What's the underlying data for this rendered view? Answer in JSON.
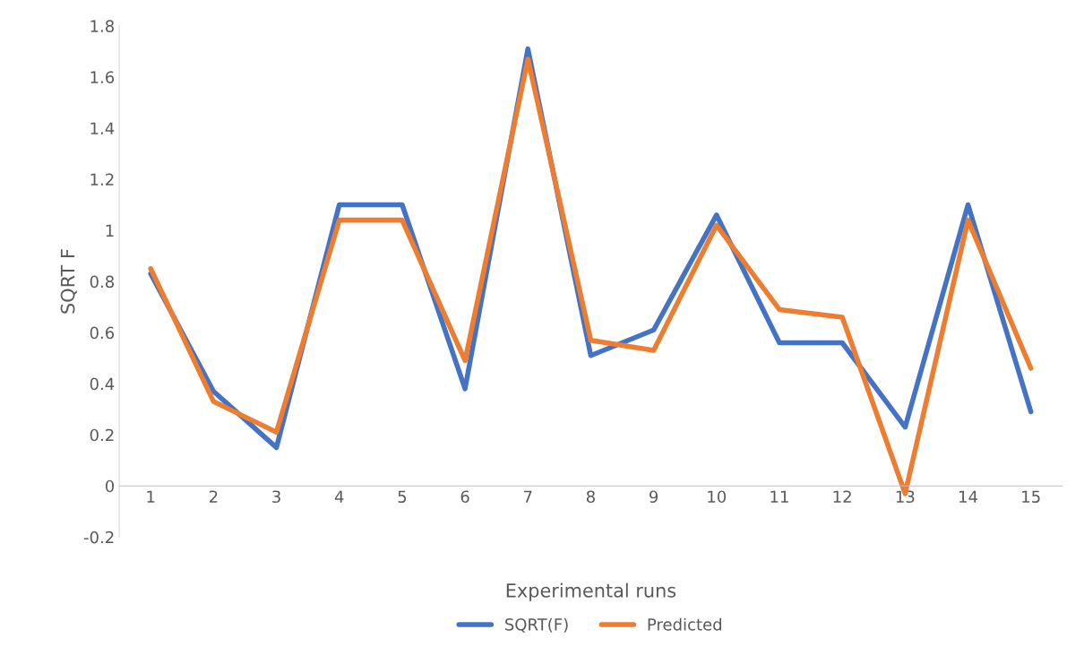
{
  "chart_data": {
    "type": "line",
    "xlabel": "Experimental runs",
    "ylabel": "SQRT F",
    "categories": [
      "1",
      "2",
      "3",
      "4",
      "5",
      "6",
      "7",
      "8",
      "9",
      "10",
      "11",
      "12",
      "13",
      "14",
      "15"
    ],
    "series": [
      {
        "name": "SQRT(F)",
        "color": "#4472c4",
        "values": [
          0.83,
          0.37,
          0.15,
          1.1,
          1.1,
          0.38,
          1.71,
          0.51,
          0.61,
          1.06,
          0.56,
          0.56,
          0.23,
          1.1,
          0.29
        ]
      },
      {
        "name": "Predicted",
        "color": "#ed7d31",
        "values": [
          0.85,
          0.33,
          0.21,
          1.04,
          1.04,
          0.49,
          1.67,
          0.57,
          0.53,
          1.02,
          0.69,
          0.66,
          -0.03,
          1.04,
          0.46
        ]
      }
    ],
    "ylim": [
      -0.2,
      1.8
    ],
    "yticks": [
      {
        "value": -0.2,
        "label": "-0.2"
      },
      0,
      0.2,
      0.4,
      0.6,
      0.8,
      1,
      1.2,
      1.4,
      1.6,
      1.8
    ],
    "grid": false,
    "legend": "bottom",
    "marker": "none",
    "line_style": "solid"
  }
}
